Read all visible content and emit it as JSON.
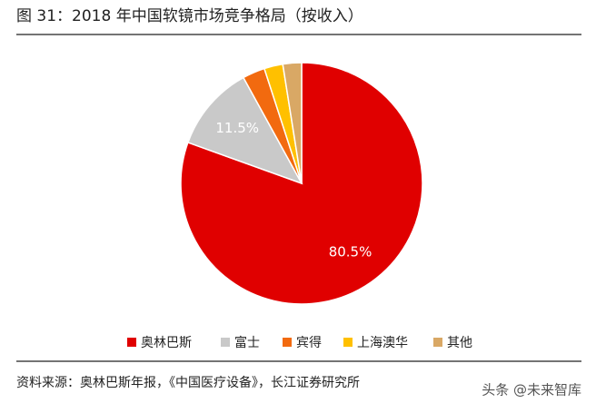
{
  "chart_data": {
    "type": "pie",
    "title": "图 31：2018 年中国软镜市场竞争格局（按收入）",
    "categories": [
      "奥林巴斯",
      "富士",
      "宾得",
      "上海澳华",
      "其他"
    ],
    "values": [
      80.5,
      11.5,
      3,
      2.5,
      2.5
    ],
    "value_labels": [
      "80.5%",
      "11.5%",
      null,
      null,
      null
    ],
    "colors": [
      "#e00000",
      "#c9c9c9",
      "#f26a0f",
      "#ffc000",
      "#d9a865"
    ],
    "source": "资料来源：奥林巴斯年报，《中国医疗设备》，长江证券研究所",
    "watermark": "头条 @未来智库"
  }
}
